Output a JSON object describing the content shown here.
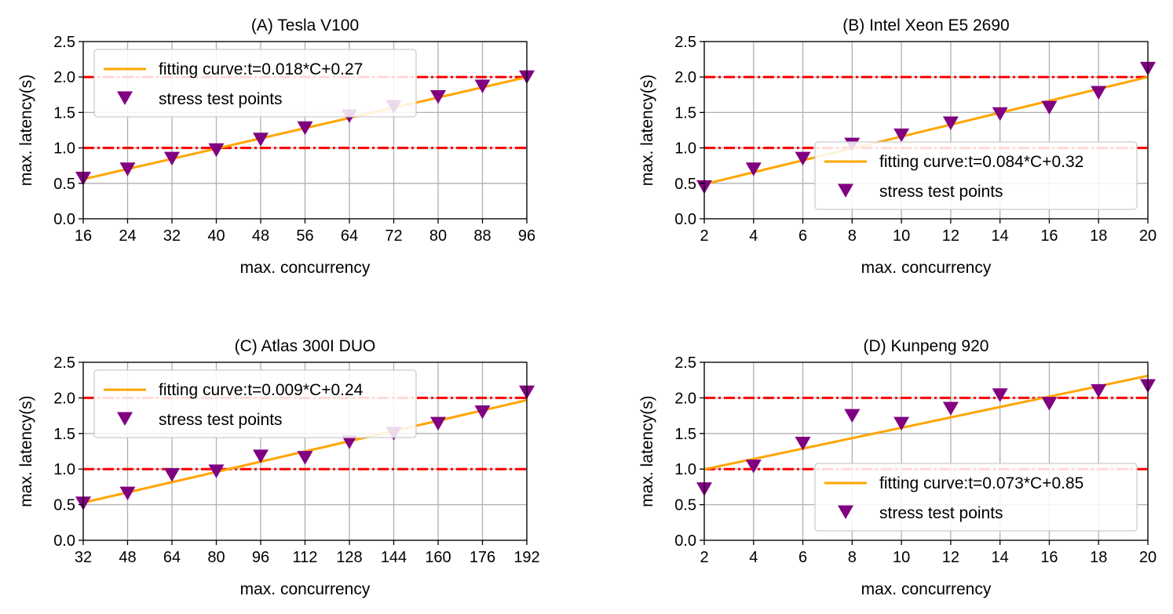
{
  "chart_data": [
    {
      "type": "scatter",
      "title": "(A) Tesla V100",
      "xlabel": "max. concurrency",
      "ylabel": "max. latency(s)",
      "xlim": [
        16,
        96
      ],
      "ylim": [
        0,
        2.5
      ],
      "xticks": [
        16,
        24,
        32,
        40,
        48,
        56,
        64,
        72,
        80,
        88,
        96
      ],
      "yticks": [
        0.0,
        0.5,
        1.0,
        1.5,
        2.0,
        2.5
      ],
      "ytick_labels": [
        "0.0",
        "0.5",
        "1.0",
        "1.5",
        "2.0",
        "2.5"
      ],
      "grid": true,
      "reference_lines": [
        1.0,
        2.0
      ],
      "legend_position": "upper-left",
      "fit": {
        "name": "fitting curve:t=0.018*C+0.27",
        "slope": 0.018,
        "intercept": 0.27,
        "color": "#ffa500"
      },
      "points": {
        "name": "stress test points",
        "color": "#800080",
        "x": [
          16,
          24,
          32,
          40,
          48,
          56,
          64,
          72,
          80,
          88,
          96
        ],
        "y": [
          0.57,
          0.7,
          0.85,
          0.97,
          1.12,
          1.28,
          1.45,
          1.58,
          1.72,
          1.87,
          2.0
        ]
      }
    },
    {
      "type": "scatter",
      "title": "(B) Intel Xeon E5 2690",
      "xlabel": "max. concurrency",
      "ylabel": "max. latency(s)",
      "xlim": [
        2,
        20
      ],
      "ylim": [
        0,
        2.5
      ],
      "xticks": [
        2,
        4,
        6,
        8,
        10,
        12,
        14,
        16,
        18,
        20
      ],
      "yticks": [
        0.0,
        0.5,
        1.0,
        1.5,
        2.0,
        2.5
      ],
      "ytick_labels": [
        "0.0",
        "0.5",
        "1.0",
        "1.5",
        "2.0",
        "2.5"
      ],
      "grid": true,
      "reference_lines": [
        1.0,
        2.0
      ],
      "legend_position": "lower-right",
      "fit": {
        "name": "fitting curve:t=0.084*C+0.32",
        "slope": 0.084,
        "intercept": 0.32,
        "color": "#ffa500"
      },
      "points": {
        "name": "stress test points",
        "color": "#800080",
        "x": [
          2,
          4,
          6,
          8,
          10,
          12,
          14,
          16,
          18,
          20
        ],
        "y": [
          0.45,
          0.7,
          0.85,
          1.05,
          1.18,
          1.35,
          1.48,
          1.57,
          1.78,
          2.12
        ]
      }
    },
    {
      "type": "scatter",
      "title": "(C) Atlas 300I DUO",
      "xlabel": "max. concurrency",
      "ylabel": "max. latency(s)",
      "xlim": [
        32,
        192
      ],
      "ylim": [
        0,
        2.5
      ],
      "xticks": [
        32,
        48,
        64,
        80,
        96,
        112,
        128,
        144,
        160,
        176,
        192
      ],
      "yticks": [
        0.0,
        0.5,
        1.0,
        1.5,
        2.0,
        2.5
      ],
      "ytick_labels": [
        "0.0",
        "0.5",
        "1.0",
        "1.5",
        "2.0",
        "2.5"
      ],
      "grid": true,
      "reference_lines": [
        1.0,
        2.0
      ],
      "legend_position": "upper-left",
      "fit": {
        "name": "fitting curve:t=0.009*C+0.24",
        "slope": 0.009,
        "intercept": 0.24,
        "color": "#ffa500"
      },
      "points": {
        "name": "stress test points",
        "color": "#800080",
        "x": [
          32,
          48,
          64,
          80,
          96,
          112,
          128,
          144,
          160,
          176,
          192
        ],
        "y": [
          0.52,
          0.66,
          0.92,
          0.97,
          1.18,
          1.16,
          1.38,
          1.5,
          1.64,
          1.8,
          2.08
        ]
      }
    },
    {
      "type": "scatter",
      "title": "(D) Kunpeng 920",
      "xlabel": "max. concurrency",
      "ylabel": "max. latency(s)",
      "xlim": [
        2,
        20
      ],
      "ylim": [
        0,
        2.5
      ],
      "xticks": [
        2,
        4,
        6,
        8,
        10,
        12,
        14,
        16,
        18,
        20
      ],
      "yticks": [
        0.0,
        0.5,
        1.0,
        1.5,
        2.0,
        2.5
      ],
      "ytick_labels": [
        "0.0",
        "0.5",
        "1.0",
        "1.5",
        "2.0",
        "2.5"
      ],
      "grid": true,
      "reference_lines": [
        1.0,
        2.0
      ],
      "legend_position": "lower-right",
      "fit": {
        "name": "fitting curve:t=0.073*C+0.85",
        "slope": 0.073,
        "intercept": 0.85,
        "color": "#ffa500"
      },
      "points": {
        "name": "stress test points",
        "color": "#800080",
        "x": [
          2,
          4,
          6,
          8,
          10,
          12,
          14,
          16,
          18,
          20
        ],
        "y": [
          0.72,
          1.04,
          1.36,
          1.75,
          1.64,
          1.85,
          2.04,
          1.92,
          2.1,
          2.17
        ]
      }
    }
  ]
}
